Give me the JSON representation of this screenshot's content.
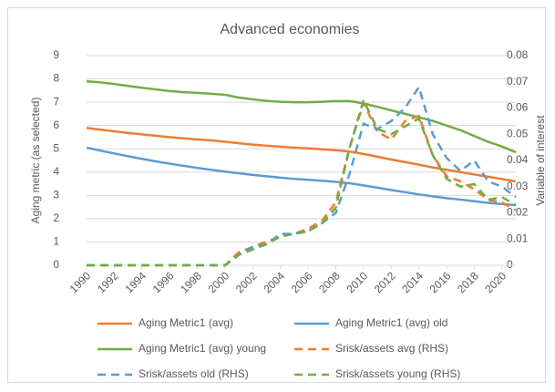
{
  "chart_data": {
    "type": "line",
    "title": "Advanced economies",
    "y_label": "Aging metric (as selected)",
    "y2_label": "Variable of interest",
    "x": [
      1990,
      1991,
      1992,
      1993,
      1994,
      1995,
      1996,
      1997,
      1998,
      1999,
      2000,
      2001,
      2002,
      2003,
      2004,
      2005,
      2006,
      2007,
      2008,
      2009,
      2010,
      2011,
      2012,
      2013,
      2014,
      2015,
      2016,
      2017,
      2018,
      2019,
      2020,
      2021
    ],
    "xlim": [
      1990,
      2021
    ],
    "xticks": [
      1990,
      1992,
      1994,
      1996,
      1998,
      2000,
      2002,
      2004,
      2006,
      2008,
      2010,
      2012,
      2014,
      2016,
      2018,
      2020
    ],
    "ylim": [
      0,
      9
    ],
    "yticks": [
      0,
      1,
      2,
      3,
      4,
      5,
      6,
      7,
      8,
      9
    ],
    "y2lim": [
      0,
      0.08
    ],
    "y2ticks": [
      0,
      0.01,
      0.02,
      0.03,
      0.04,
      0.05,
      0.06,
      0.07,
      0.08
    ],
    "grid": true,
    "legend": "bottom",
    "series": [
      {
        "name": "Aging Metric1 (avg)",
        "color": "#ed7d31",
        "style": "solid",
        "values": [
          5.9,
          5.82,
          5.75,
          5.68,
          5.62,
          5.56,
          5.5,
          5.45,
          5.4,
          5.36,
          5.3,
          5.24,
          5.18,
          5.13,
          5.09,
          5.05,
          5.02,
          4.98,
          4.94,
          4.88,
          4.78,
          4.66,
          4.54,
          4.43,
          4.32,
          4.2,
          4.1,
          4.0,
          3.9,
          3.8,
          3.7,
          3.6
        ]
      },
      {
        "name": "Aging Metric1 (avg) old",
        "color": "#5b9bd5",
        "style": "solid",
        "values": [
          5.05,
          4.92,
          4.8,
          4.68,
          4.57,
          4.46,
          4.36,
          4.27,
          4.18,
          4.1,
          4.02,
          3.95,
          3.88,
          3.82,
          3.76,
          3.71,
          3.67,
          3.63,
          3.58,
          3.52,
          3.43,
          3.33,
          3.23,
          3.14,
          3.04,
          2.96,
          2.88,
          2.82,
          2.75,
          2.68,
          2.63,
          2.58
        ]
      },
      {
        "name": "Aging Metric1 (avg) young",
        "color": "#70ad47",
        "style": "solid",
        "values": [
          7.9,
          7.85,
          7.78,
          7.7,
          7.62,
          7.55,
          7.48,
          7.43,
          7.4,
          7.36,
          7.32,
          7.2,
          7.12,
          7.06,
          7.02,
          7.0,
          7.0,
          7.02,
          7.05,
          7.05,
          6.95,
          6.8,
          6.65,
          6.5,
          6.35,
          6.2,
          6.0,
          5.8,
          5.55,
          5.3,
          5.1,
          4.85
        ]
      },
      {
        "name": "Srisk/assets avg (RHS)",
        "color": "#ed7d31",
        "style": "dashed",
        "axis": "y2",
        "values": [
          0,
          0,
          0,
          0,
          0,
          0,
          0,
          0,
          0,
          0,
          0,
          0.005,
          0.007,
          0.009,
          0.011,
          0.012,
          0.014,
          0.017,
          0.024,
          0.045,
          0.062,
          0.051,
          0.048,
          0.055,
          0.057,
          0.042,
          0.034,
          0.032,
          0.029,
          0.025,
          0.024,
          0.021
        ]
      },
      {
        "name": "Srisk/assets old (RHS)",
        "color": "#5b9bd5",
        "style": "dashed",
        "axis": "y2",
        "values": [
          0,
          0,
          0,
          0,
          0,
          0,
          0,
          0,
          0,
          0,
          0,
          0.004,
          0.007,
          0.008,
          0.012,
          0.012,
          0.013,
          0.016,
          0.02,
          0.035,
          0.054,
          0.052,
          0.055,
          0.06,
          0.068,
          0.05,
          0.041,
          0.036,
          0.04,
          0.032,
          0.03,
          0.026
        ]
      },
      {
        "name": "Srisk/assets young (RHS)",
        "color": "#70ad47",
        "style": "dashed",
        "axis": "y2",
        "values": [
          0,
          0,
          0,
          0,
          0,
          0,
          0,
          0,
          0,
          0,
          0,
          0.004,
          0.006,
          0.008,
          0.011,
          0.012,
          0.013,
          0.016,
          0.022,
          0.045,
          0.063,
          0.052,
          0.05,
          0.053,
          0.056,
          0.042,
          0.033,
          0.03,
          0.031,
          0.025,
          0.026,
          0.023
        ]
      }
    ]
  }
}
